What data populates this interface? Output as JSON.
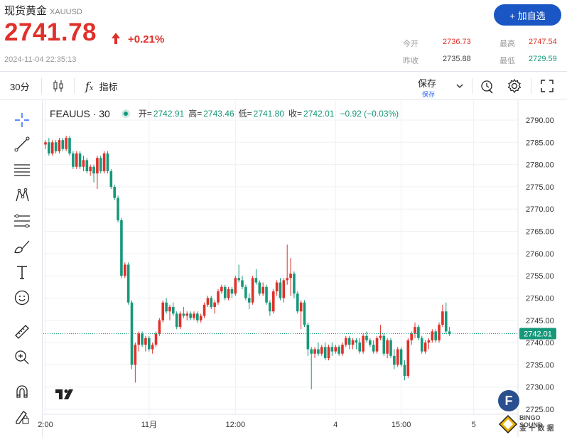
{
  "header": {
    "title": "现货黄金",
    "symbol": "XAUUSD",
    "add_button": "+ 加自选",
    "price": "2741.78",
    "change_pct": "+0.21%",
    "timestamp": "2024-11-04 22:35:13",
    "stats": {
      "open_label": "今开",
      "open_value": "2736.73",
      "high_label": "最高",
      "high_value": "2747.54",
      "prev_close_label": "昨收",
      "prev_close_value": "2735.88",
      "low_label": "最低",
      "low_value": "2729.59"
    }
  },
  "toolbar": {
    "interval": "30分",
    "indicators_label": "指标",
    "save_label": "保存",
    "save_sub": "保存"
  },
  "left_tools": [
    "crosshair-icon",
    "trend-line-icon",
    "horizontal-lines-icon",
    "pattern-icon",
    "fib-icon",
    "brush-icon",
    "text-icon",
    "emoji-icon",
    "ruler-icon",
    "zoom-in-icon",
    "magnet-icon",
    "lock-draw-icon"
  ],
  "legend": {
    "name": "FEAUUS · 30",
    "open_label": "开=",
    "open": "2742.91",
    "high_label": "高=",
    "high": "2743.46",
    "low_label": "低=",
    "low": "2741.80",
    "close_label": "收=",
    "close": "2742.01",
    "change": "−0.92 (−0.03%)"
  },
  "colors": {
    "up": "#e0302a",
    "down": "#16987a",
    "accent": "#1a56c4"
  },
  "watermark": {
    "line1": "BINGO SOUND",
    "line2": "金 十 数 据"
  },
  "chart_data": {
    "type": "candlestick",
    "ylim": [
      2723,
      2793
    ],
    "y_ticks": [
      "2790.00",
      "2785.00",
      "2780.00",
      "2775.00",
      "2770.00",
      "2765.00",
      "2760.00",
      "2755.00",
      "2750.00",
      "2745.00",
      "2740.00",
      "2735.00",
      "2730.00",
      "2725.00"
    ],
    "x_labels": [
      {
        "label": "2:00",
        "index": 0
      },
      {
        "label": "11月",
        "index": 30
      },
      {
        "label": "12:00",
        "index": 55
      },
      {
        "label": "4",
        "index": 84
      },
      {
        "label": "15:00",
        "index": 103
      },
      {
        "label": "5",
        "index": 124
      }
    ],
    "last_price": "2742.01",
    "candles": [
      [
        2784.5,
        2785.5,
        2783.5,
        2785.0
      ],
      [
        2785.0,
        2786.0,
        2782.0,
        2782.5
      ],
      [
        2782.5,
        2785.5,
        2782.0,
        2785.0
      ],
      [
        2785.0,
        2785.5,
        2782.5,
        2783.0
      ],
      [
        2783.0,
        2786.0,
        2782.5,
        2785.5
      ],
      [
        2785.5,
        2786.0,
        2783.0,
        2783.5
      ],
      [
        2783.5,
        2786.5,
        2783.0,
        2786.0
      ],
      [
        2786.0,
        2786.5,
        2782.0,
        2782.5
      ],
      [
        2782.5,
        2783.0,
        2779.0,
        2779.5
      ],
      [
        2779.5,
        2783.0,
        2779.0,
        2782.5
      ],
      [
        2782.5,
        2783.0,
        2779.0,
        2779.5
      ],
      [
        2779.5,
        2782.0,
        2778.5,
        2781.0
      ],
      [
        2781.0,
        2781.5,
        2778.0,
        2778.5
      ],
      [
        2778.5,
        2780.0,
        2777.5,
        2779.5
      ],
      [
        2779.5,
        2780.0,
        2776.0,
        2778.0
      ],
      [
        2778.0,
        2782.0,
        2774.5,
        2781.5
      ],
      [
        2781.5,
        2782.0,
        2778.0,
        2778.5
      ],
      [
        2778.5,
        2783.0,
        2778.0,
        2782.5
      ],
      [
        2782.5,
        2783.0,
        2778.0,
        2778.5
      ],
      [
        2778.5,
        2779.0,
        2774.5,
        2775.0
      ],
      [
        2775.0,
        2775.5,
        2772.0,
        2772.5
      ],
      [
        2772.5,
        2773.0,
        2767.0,
        2767.5
      ],
      [
        2767.5,
        2768.0,
        2754.5,
        2755.0
      ],
      [
        2755.0,
        2758.0,
        2754.5,
        2757.5
      ],
      [
        2757.5,
        2758.0,
        2748.5,
        2749.0
      ],
      [
        2749.0,
        2749.5,
        2734.0,
        2735.0
      ],
      [
        2735.0,
        2740.0,
        2731.0,
        2739.5
      ],
      [
        2739.5,
        2742.5,
        2738.0,
        2742.0
      ],
      [
        2742.0,
        2742.5,
        2739.0,
        2739.5
      ],
      [
        2739.5,
        2741.5,
        2738.0,
        2741.0
      ],
      [
        2741.0,
        2741.5,
        2738.0,
        2738.5
      ],
      [
        2738.5,
        2740.0,
        2737.5,
        2739.5
      ],
      [
        2739.5,
        2742.5,
        2739.0,
        2742.0
      ],
      [
        2742.0,
        2745.5,
        2741.5,
        2745.0
      ],
      [
        2745.0,
        2749.5,
        2744.5,
        2749.0
      ],
      [
        2749.0,
        2750.0,
        2746.5,
        2747.0
      ],
      [
        2747.0,
        2748.5,
        2745.0,
        2748.0
      ],
      [
        2748.0,
        2749.0,
        2746.0,
        2746.5
      ],
      [
        2746.5,
        2747.0,
        2743.0,
        2743.5
      ],
      [
        2743.5,
        2747.0,
        2743.0,
        2746.5
      ],
      [
        2746.5,
        2748.0,
        2745.5,
        2746.0
      ],
      [
        2746.0,
        2747.0,
        2745.0,
        2746.5
      ],
      [
        2746.5,
        2747.0,
        2745.0,
        2745.5
      ],
      [
        2745.5,
        2747.0,
        2745.0,
        2746.5
      ],
      [
        2746.5,
        2747.0,
        2744.5,
        2745.0
      ],
      [
        2745.0,
        2746.5,
        2744.5,
        2746.0
      ],
      [
        2746.0,
        2749.0,
        2745.5,
        2748.5
      ],
      [
        2748.5,
        2750.5,
        2748.0,
        2750.0
      ],
      [
        2750.0,
        2750.5,
        2747.5,
        2748.0
      ],
      [
        2748.0,
        2749.5,
        2746.5,
        2749.0
      ],
      [
        2749.0,
        2752.0,
        2748.5,
        2751.5
      ],
      [
        2751.5,
        2753.0,
        2751.0,
        2752.5
      ],
      [
        2752.5,
        2753.0,
        2749.5,
        2750.0
      ],
      [
        2750.0,
        2752.5,
        2749.5,
        2752.0
      ],
      [
        2752.0,
        2752.5,
        2750.0,
        2751.0
      ],
      [
        2751.0,
        2755.0,
        2750.5,
        2754.5
      ],
      [
        2754.5,
        2757.5,
        2753.5,
        2754.0
      ],
      [
        2754.0,
        2755.0,
        2752.0,
        2752.5
      ],
      [
        2752.5,
        2753.0,
        2749.5,
        2750.0
      ],
      [
        2750.0,
        2751.0,
        2747.5,
        2749.0
      ],
      [
        2749.0,
        2755.0,
        2748.5,
        2754.5
      ],
      [
        2754.5,
        2756.5,
        2753.0,
        2753.5
      ],
      [
        2753.5,
        2754.0,
        2750.5,
        2751.0
      ],
      [
        2751.0,
        2753.5,
        2750.5,
        2752.5
      ],
      [
        2752.5,
        2753.0,
        2748.5,
        2749.0
      ],
      [
        2749.0,
        2749.5,
        2746.0,
        2747.0
      ],
      [
        2747.0,
        2752.0,
        2746.5,
        2751.5
      ],
      [
        2751.5,
        2754.0,
        2750.5,
        2753.5
      ],
      [
        2753.5,
        2754.5,
        2749.5,
        2750.0
      ],
      [
        2750.0,
        2754.5,
        2749.0,
        2754.0
      ],
      [
        2754.0,
        2762.0,
        2753.0,
        2754.5
      ],
      [
        2754.5,
        2759.0,
        2750.5,
        2755.5
      ],
      [
        2755.5,
        2756.0,
        2750.0,
        2751.0
      ],
      [
        2751.0,
        2751.5,
        2746.5,
        2747.0
      ],
      [
        2747.0,
        2749.5,
        2743.0,
        2749.0
      ],
      [
        2749.0,
        2749.5,
        2743.5,
        2744.0
      ],
      [
        2744.0,
        2744.5,
        2737.0,
        2738.5
      ],
      [
        2738.5,
        2739.0,
        2729.5,
        2737.5
      ],
      [
        2737.5,
        2739.0,
        2736.5,
        2738.5
      ],
      [
        2738.5,
        2740.0,
        2737.0,
        2737.5
      ],
      [
        2737.5,
        2739.5,
        2737.0,
        2739.0
      ],
      [
        2739.0,
        2740.0,
        2736.0,
        2736.5
      ],
      [
        2736.5,
        2739.5,
        2736.0,
        2739.0
      ],
      [
        2739.0,
        2740.0,
        2737.0,
        2738.0
      ],
      [
        2738.0,
        2739.5,
        2737.5,
        2739.0
      ],
      [
        2739.0,
        2739.5,
        2737.0,
        2737.5
      ],
      [
        2737.5,
        2740.0,
        2737.0,
        2739.5
      ],
      [
        2739.5,
        2741.5,
        2739.0,
        2741.0
      ],
      [
        2741.0,
        2741.5,
        2738.5,
        2739.5
      ],
      [
        2739.5,
        2741.0,
        2738.5,
        2740.5
      ],
      [
        2740.5,
        2741.0,
        2738.5,
        2740.0
      ],
      [
        2740.0,
        2741.0,
        2737.5,
        2738.0
      ],
      [
        2738.0,
        2742.0,
        2737.5,
        2741.5
      ],
      [
        2741.5,
        2742.5,
        2740.0,
        2740.5
      ],
      [
        2740.5,
        2741.0,
        2739.0,
        2739.5
      ],
      [
        2739.5,
        2740.5,
        2737.5,
        2738.0
      ],
      [
        2738.0,
        2741.5,
        2737.5,
        2741.0
      ],
      [
        2741.0,
        2744.0,
        2740.5,
        2741.5
      ],
      [
        2741.5,
        2742.0,
        2737.0,
        2737.5
      ],
      [
        2737.5,
        2741.0,
        2736.5,
        2740.5
      ],
      [
        2740.5,
        2741.0,
        2736.5,
        2737.0
      ],
      [
        2737.0,
        2738.5,
        2734.0,
        2735.0
      ],
      [
        2735.0,
        2739.0,
        2734.5,
        2738.5
      ],
      [
        2738.5,
        2739.0,
        2734.5,
        2735.0
      ],
      [
        2735.0,
        2736.0,
        2731.5,
        2732.5
      ],
      [
        2732.5,
        2741.0,
        2732.0,
        2740.5
      ],
      [
        2740.5,
        2742.5,
        2739.5,
        2742.0
      ],
      [
        2742.0,
        2744.5,
        2741.0,
        2743.5
      ],
      [
        2743.5,
        2744.0,
        2740.5,
        2741.0
      ],
      [
        2741.0,
        2741.5,
        2737.5,
        2738.0
      ],
      [
        2738.0,
        2740.5,
        2737.5,
        2740.0
      ],
      [
        2740.0,
        2741.0,
        2738.5,
        2740.5
      ],
      [
        2740.5,
        2743.0,
        2740.0,
        2742.5
      ],
      [
        2742.5,
        2743.0,
        2740.0,
        2740.5
      ],
      [
        2740.5,
        2744.5,
        2740.0,
        2744.0
      ],
      [
        2744.0,
        2748.5,
        2743.5,
        2747.0
      ],
      [
        2747.0,
        2749.0,
        2742.0,
        2742.5
      ],
      [
        2742.5,
        2743.5,
        2741.5,
        2742.0
      ]
    ]
  }
}
